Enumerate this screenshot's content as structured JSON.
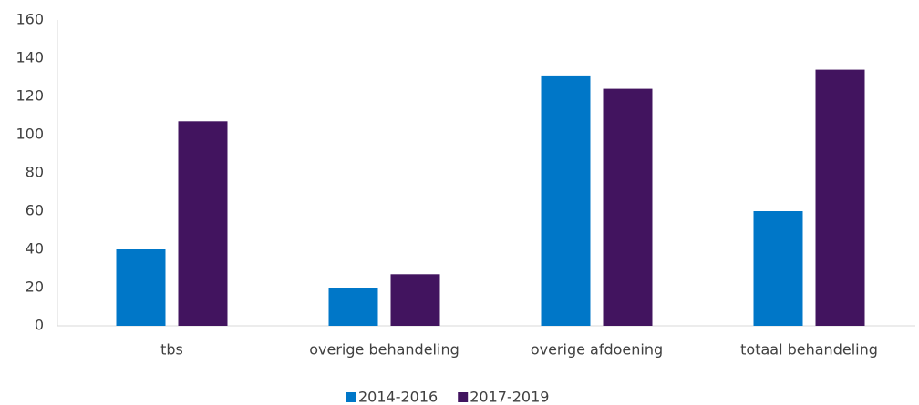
{
  "chart_data": {
    "type": "bar",
    "categories": [
      "tbs",
      "overige behandeling",
      "overige afdoening",
      "totaal behandeling"
    ],
    "series": [
      {
        "name": "2014-2016",
        "color": "#0077c8",
        "values": [
          40,
          20,
          131,
          60
        ]
      },
      {
        "name": "2017-2019",
        "color": "#42145f",
        "values": [
          107,
          27,
          124,
          134
        ]
      }
    ],
    "ylim": [
      0,
      160
    ],
    "yticks": [
      0,
      20,
      40,
      60,
      80,
      100,
      120,
      140,
      160
    ],
    "grid": false,
    "legend": "bottom"
  }
}
